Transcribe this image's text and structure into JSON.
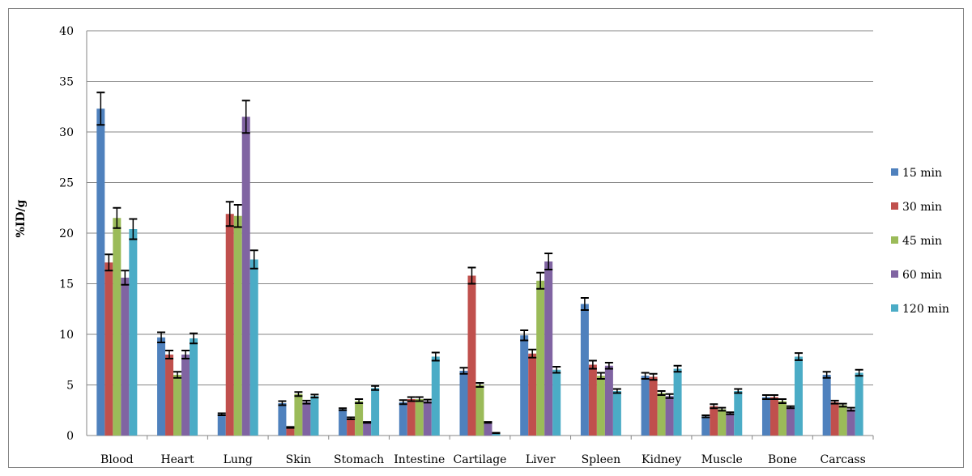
{
  "chart_data": {
    "type": "bar",
    "title": "",
    "xlabel": "",
    "ylabel": "%ID/g",
    "ylim": [
      0,
      40
    ],
    "yticks": [
      0,
      5,
      10,
      15,
      20,
      25,
      30,
      35,
      40
    ],
    "grid": true,
    "legend_position": "right",
    "error_bars": true,
    "categories": [
      "Blood",
      "Heart",
      "Lung",
      "Skin",
      "Stomach",
      "Intestine",
      "Cartilage",
      "Liver",
      "Spleen",
      "Kidney",
      "Muscle",
      "Bone",
      "Carcass"
    ],
    "series": [
      {
        "name": "15 min",
        "color": "#4f81bd",
        "values": [
          32.3,
          9.7,
          2.1,
          3.2,
          2.6,
          3.3,
          6.4,
          9.9,
          13.0,
          5.9,
          1.9,
          3.8,
          6.0
        ],
        "errors": [
          1.6,
          0.5,
          0.1,
          0.2,
          0.1,
          0.2,
          0.3,
          0.5,
          0.6,
          0.3,
          0.1,
          0.2,
          0.3
        ]
      },
      {
        "name": "30 min",
        "color": "#c0504d",
        "values": [
          17.1,
          8.0,
          21.9,
          0.8,
          1.7,
          3.6,
          15.8,
          8.1,
          7.0,
          5.8,
          2.9,
          3.8,
          3.3
        ],
        "errors": [
          0.8,
          0.4,
          1.2,
          0.05,
          0.1,
          0.2,
          0.8,
          0.4,
          0.4,
          0.3,
          0.2,
          0.2,
          0.15
        ]
      },
      {
        "name": "45 min",
        "color": "#9bbb59",
        "values": [
          21.5,
          6.0,
          21.7,
          4.1,
          3.4,
          3.6,
          5.0,
          15.3,
          5.9,
          4.2,
          2.6,
          3.4,
          3.0
        ],
        "errors": [
          1.0,
          0.3,
          1.1,
          0.2,
          0.2,
          0.2,
          0.2,
          0.8,
          0.3,
          0.2,
          0.15,
          0.2,
          0.15
        ]
      },
      {
        "name": "60 min",
        "color": "#8064a2",
        "values": [
          15.6,
          8.0,
          31.5,
          3.3,
          1.3,
          3.4,
          1.3,
          17.2,
          6.9,
          3.9,
          2.2,
          2.8,
          2.6
        ],
        "errors": [
          0.7,
          0.4,
          1.6,
          0.15,
          0.05,
          0.15,
          0.05,
          0.8,
          0.3,
          0.2,
          0.1,
          0.1,
          0.15
        ]
      },
      {
        "name": "120 min",
        "color": "#4bacc6",
        "values": [
          20.4,
          9.6,
          17.4,
          3.9,
          4.7,
          7.8,
          0.25,
          6.5,
          4.4,
          6.6,
          4.4,
          7.8,
          6.2
        ],
        "errors": [
          1.0,
          0.5,
          0.9,
          0.15,
          0.2,
          0.4,
          0.02,
          0.3,
          0.2,
          0.3,
          0.2,
          0.35,
          0.3
        ]
      }
    ]
  }
}
